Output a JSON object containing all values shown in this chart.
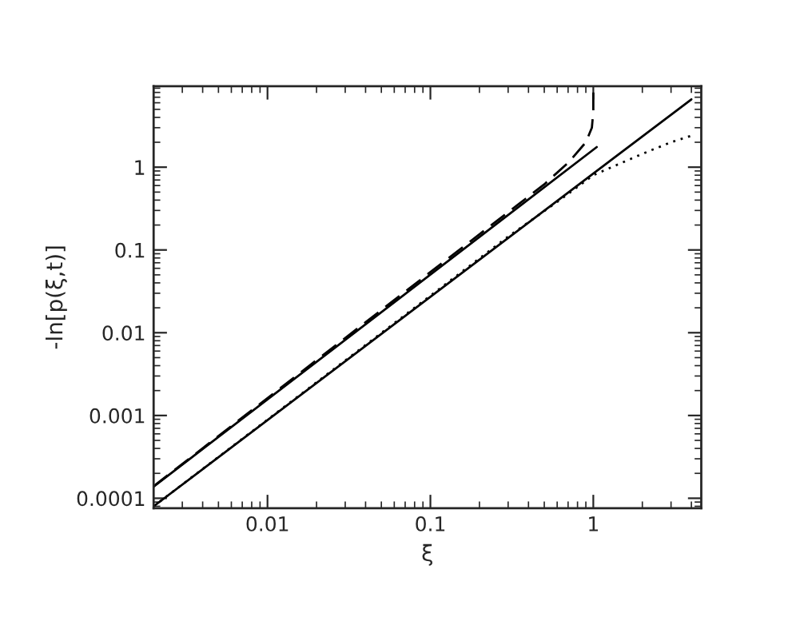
{
  "chart_data": {
    "type": "line",
    "xlabel": "ξ",
    "ylabel": "-ln[p(ξ,t)]",
    "log": "xy",
    "grid": false,
    "marker": "none",
    "xlim": [
      0.002,
      4.6
    ],
    "ylim": [
      7.6e-05,
      9.5
    ],
    "xticks": [
      {
        "value": 0.01,
        "label": "0.01"
      },
      {
        "value": 0.1,
        "label": "0.1"
      },
      {
        "value": 1,
        "label": "1"
      }
    ],
    "yticks": [
      {
        "value": 0.0001,
        "label": "0.0001"
      },
      {
        "value": 0.001,
        "label": "0.001"
      },
      {
        "value": 0.01,
        "label": "0.01"
      },
      {
        "value": 0.1,
        "label": "0.1"
      },
      {
        "value": 1,
        "label": "1"
      }
    ],
    "series": [
      {
        "color": "#000000",
        "line_style": "solid",
        "x": [
          0.002,
          4.0
        ],
        "values": [
          8e-05,
          6.6
        ]
      },
      {
        "color": "#000000",
        "line_style": "solid",
        "x": [
          0.002,
          1.05
        ],
        "values": [
          0.000138,
          1.75
        ]
      },
      {
        "color": "#000000",
        "line_style": "dashed",
        "x": [
          0.002,
          0.1,
          0.5,
          0.71,
          0.9,
          0.98,
          1.0,
          1.0
        ],
        "values": [
          0.00014,
          0.054,
          0.62,
          1.16,
          2.0,
          3.0,
          4.7,
          8.0
        ]
      },
      {
        "color": "#000000",
        "line_style": "dotted",
        "x": [
          0.002,
          0.1,
          0.3,
          0.6,
          1.0,
          2.0,
          3.0,
          4.0
        ],
        "values": [
          8e-05,
          0.028,
          0.145,
          0.38,
          0.8,
          1.45,
          2.0,
          2.4
        ]
      }
    ]
  }
}
